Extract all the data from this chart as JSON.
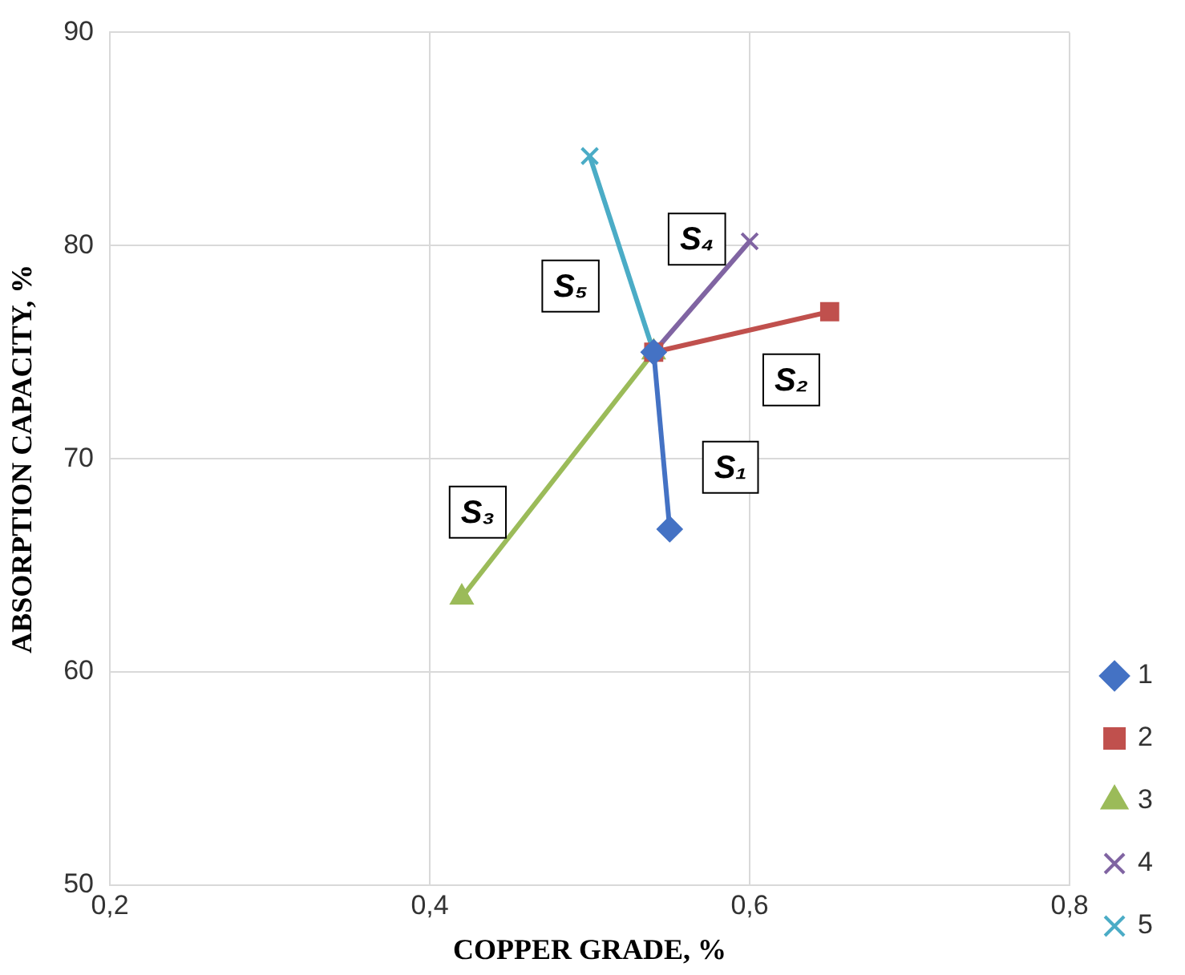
{
  "chart_data": {
    "type": "line",
    "xlabel": "COPPER GRADE, %",
    "ylabel": "ABSORPTION CAPACITY, %",
    "xlim": [
      0.2,
      0.8
    ],
    "xticks": [
      {
        "value": 0.2,
        "label": "0,2"
      },
      {
        "value": 0.4,
        "label": "0,4"
      },
      {
        "value": 0.6,
        "label": "0,6"
      },
      {
        "value": 0.8,
        "label": "0,8"
      }
    ],
    "ylim": [
      50,
      90
    ],
    "yticks": [
      50,
      60,
      70,
      80,
      90
    ],
    "grid": true,
    "legend": "right",
    "series": [
      {
        "name": "1",
        "color": "#4472c4",
        "marker": "diamond",
        "x": [
          0.54,
          0.55
        ],
        "values": [
          75,
          66.7
        ]
      },
      {
        "name": "2",
        "color": "#c0504d",
        "marker": "square",
        "x": [
          0.54,
          0.65
        ],
        "values": [
          75,
          76.9
        ]
      },
      {
        "name": "3",
        "color": "#9bbb59",
        "marker": "triangle",
        "x": [
          0.54,
          0.42
        ],
        "values": [
          75,
          63.5
        ]
      },
      {
        "name": "4",
        "color": "#8064a2",
        "marker": "cross",
        "x": [
          0.54,
          0.6
        ],
        "values": [
          75,
          80.2
        ]
      },
      {
        "name": "5",
        "color": "#4bacc6",
        "marker": "cross",
        "x": [
          0.54,
          0.5
        ],
        "values": [
          75,
          84.2
        ]
      }
    ],
    "annotations": [
      {
        "text": "S₁",
        "x": 0.588,
        "y": 69.6
      },
      {
        "text": "S₂",
        "x": 0.626,
        "y": 73.7
      },
      {
        "text": "S₃",
        "x": 0.43,
        "y": 67.5
      },
      {
        "text": "S₄",
        "x": 0.567,
        "y": 80.3
      },
      {
        "text": "S₅",
        "x": 0.488,
        "y": 78.1
      }
    ]
  }
}
